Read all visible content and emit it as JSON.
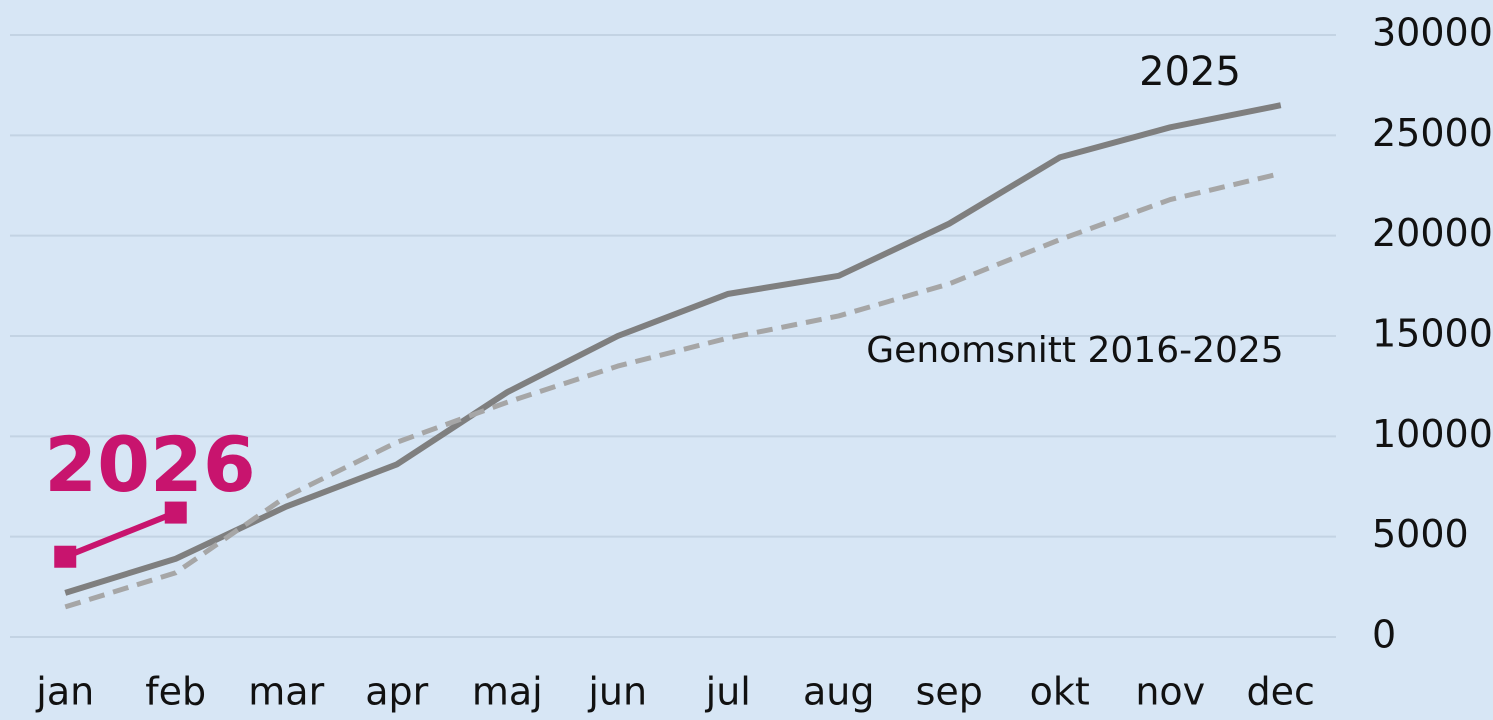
{
  "chart_data": {
    "type": "line",
    "categories": [
      "jan",
      "feb",
      "mar",
      "apr",
      "maj",
      "jun",
      "jul",
      "aug",
      "sep",
      "okt",
      "nov",
      "dec"
    ],
    "series": [
      {
        "name": "2025",
        "color": "#7f7f7f",
        "dashed": false,
        "marker": "none",
        "values": [
          2200,
          3900,
          6500,
          8600,
          12200,
          15000,
          17100,
          18000,
          20600,
          23900,
          25400,
          26500
        ]
      },
      {
        "name": "Genomsnitt 2016-2025",
        "color": "#a6a6a6",
        "dashed": true,
        "marker": "none",
        "values": [
          1500,
          3200,
          7000,
          9700,
          11700,
          13500,
          14900,
          16000,
          17600,
          19800,
          21800,
          23100
        ]
      },
      {
        "name": "2026",
        "color": "#c8146e",
        "dashed": false,
        "marker": "square",
        "values": [
          4000,
          6200,
          null,
          null,
          null,
          null,
          null,
          null,
          null,
          null,
          null,
          null
        ]
      }
    ],
    "ylim": [
      0,
      30000
    ],
    "yticks": [
      0,
      5000,
      10000,
      15000,
      20000,
      25000,
      30000
    ],
    "y_axis_side": "right",
    "grid": true
  }
}
